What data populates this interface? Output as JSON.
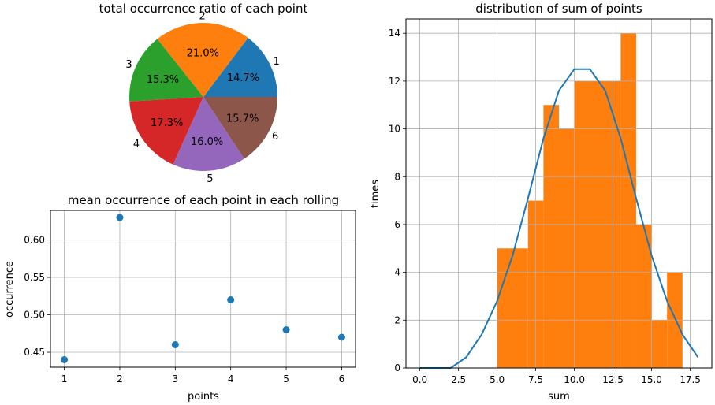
{
  "chart_data": [
    {
      "type": "pie",
      "title": "total occurrence ratio of each point",
      "labels": [
        "1",
        "2",
        "3",
        "4",
        "5",
        "6"
      ],
      "values": [
        14.7,
        21.0,
        15.3,
        17.3,
        16.0,
        15.7
      ],
      "pct_labels": [
        "14.7%",
        "21.0%",
        "15.3%",
        "17.3%",
        "16.0%",
        "15.7%"
      ],
      "colors": [
        "#1f77b4",
        "#ff7f0e",
        "#2ca02c",
        "#d62728",
        "#9467bd",
        "#8c564b"
      ]
    },
    {
      "type": "scatter",
      "title": "mean occurrence of each point in each rolling",
      "xlabel": "points",
      "ylabel": "occurrence",
      "x": [
        1,
        2,
        3,
        4,
        5,
        6
      ],
      "y": [
        0.44,
        0.63,
        0.46,
        0.52,
        0.48,
        0.47
      ],
      "xlim": [
        0.75,
        6.25
      ],
      "ylim": [
        0.43,
        0.6395
      ],
      "xticks": [
        1,
        2,
        3,
        4,
        5,
        6
      ],
      "xtick_labels": [
        "1",
        "2",
        "3",
        "4",
        "5",
        "6"
      ],
      "yticks": [
        0.45,
        0.5,
        0.55,
        0.6
      ],
      "ytick_labels": [
        "0.45",
        "0.50",
        "0.55",
        "0.60"
      ],
      "grid": true,
      "color": "#1f77b4"
    },
    {
      "type": "bar",
      "title": "distribution of sum of points",
      "xlabel": "sum",
      "ylabel": "times",
      "xlim": [
        -0.9,
        18.9
      ],
      "ylim": [
        0,
        14.6
      ],
      "xticks": [
        0,
        2.5,
        5,
        7.5,
        10,
        12.5,
        15,
        17.5
      ],
      "xtick_labels": [
        "0.0",
        "2.5",
        "5.0",
        "7.5",
        "10.0",
        "12.5",
        "15.0",
        "17.5"
      ],
      "yticks": [
        0,
        2,
        4,
        6,
        8,
        10,
        12,
        14
      ],
      "ytick_labels": [
        "0",
        "2",
        "4",
        "6",
        "8",
        "10",
        "12",
        "14"
      ],
      "grid": true,
      "bins": [
        {
          "x0": 5,
          "x1": 7,
          "value": 5
        },
        {
          "x0": 7,
          "x1": 8,
          "value": 7
        },
        {
          "x0": 8,
          "x1": 9,
          "value": 11
        },
        {
          "x0": 9,
          "x1": 10,
          "value": 10
        },
        {
          "x0": 10,
          "x1": 13,
          "value": 12
        },
        {
          "x0": 13,
          "x1": 14,
          "value": 14
        },
        {
          "x0": 14,
          "x1": 15,
          "value": 6
        },
        {
          "x0": 15,
          "x1": 16,
          "value": 2
        },
        {
          "x0": 16,
          "x1": 17,
          "value": 4
        }
      ],
      "bar_color": "#ff7f0e",
      "line": {
        "x": [
          0,
          1,
          2,
          3,
          4,
          5,
          6,
          7,
          8,
          9,
          10,
          11,
          12,
          13,
          14,
          15,
          16,
          17,
          18
        ],
        "y": [
          0,
          0,
          0,
          0.45,
          1.4,
          2.8,
          4.7,
          7.1,
          9.6,
          11.6,
          12.5,
          12.5,
          11.6,
          9.6,
          7.1,
          4.7,
          2.8,
          1.4,
          0.45
        ],
        "color": "#1f77b4"
      }
    }
  ]
}
